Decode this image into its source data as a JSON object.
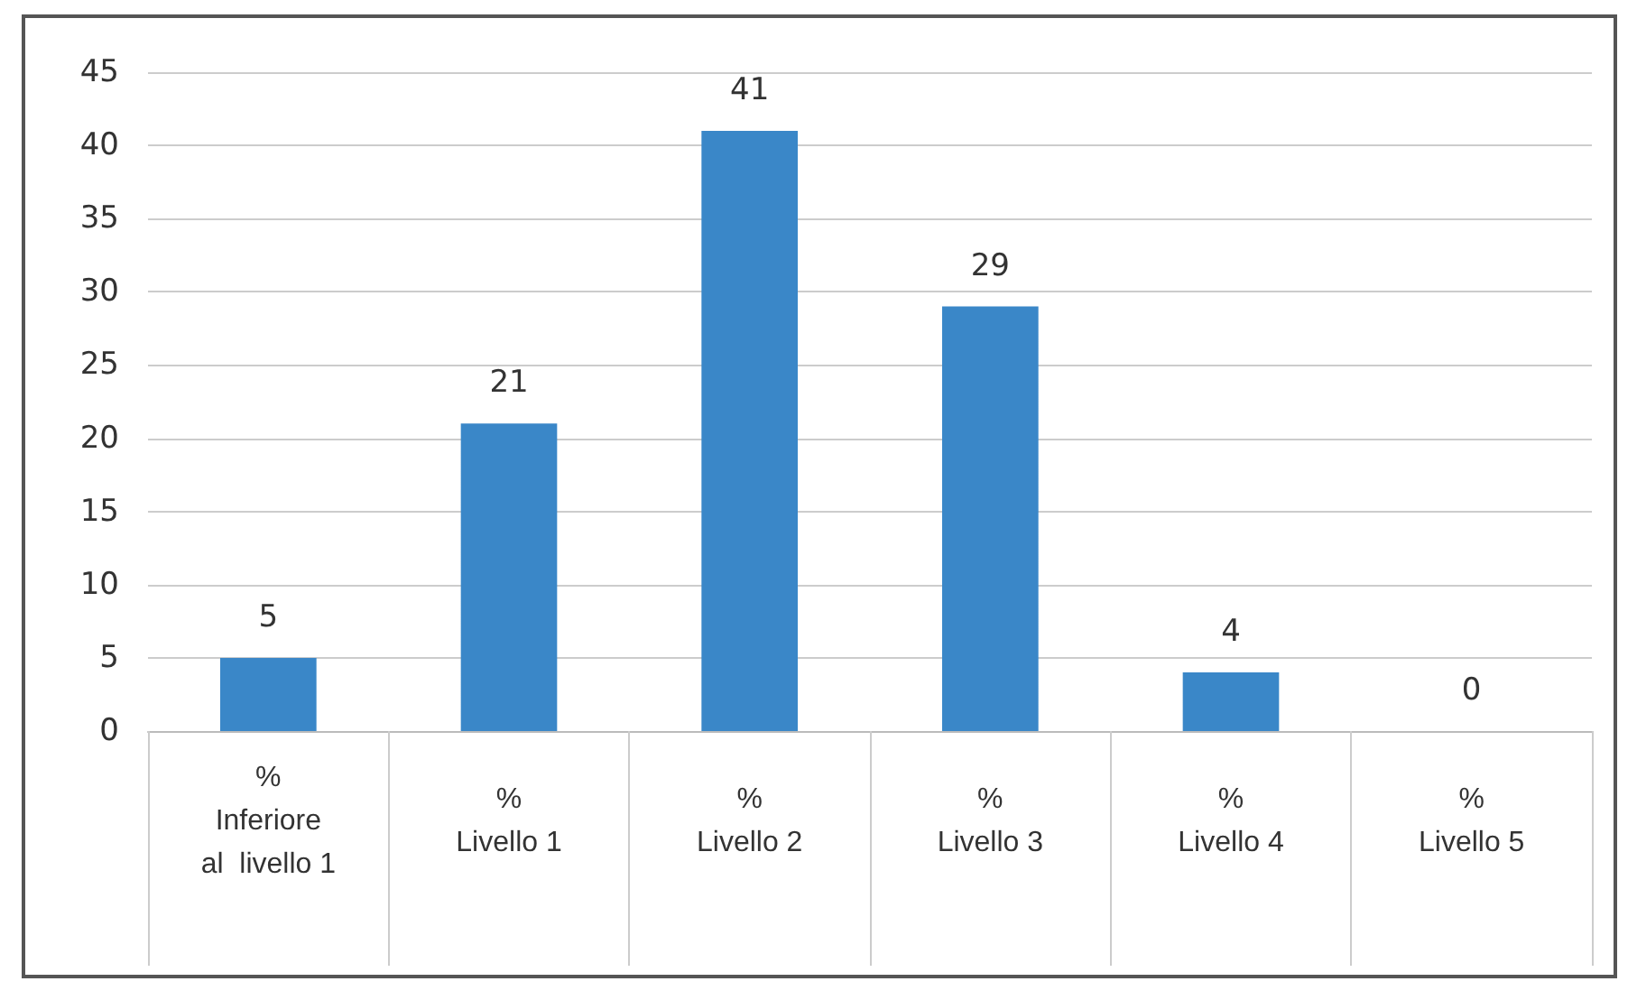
{
  "chart_data": {
    "type": "bar",
    "categories": [
      "%\nInferiore\nal  livello 1",
      "%\nLivello 1",
      "%\nLivello 2",
      "%\nLivello 3",
      "%\nLivello 4",
      "%\nLivello 5"
    ],
    "values": [
      5,
      21,
      41,
      29,
      4,
      0
    ],
    "color": "#3a87c8",
    "ylim": [
      0,
      45
    ],
    "yticks": [
      0,
      5,
      10,
      15,
      20,
      25,
      30,
      35,
      40,
      45
    ],
    "grid": "y",
    "data_labels": true
  }
}
